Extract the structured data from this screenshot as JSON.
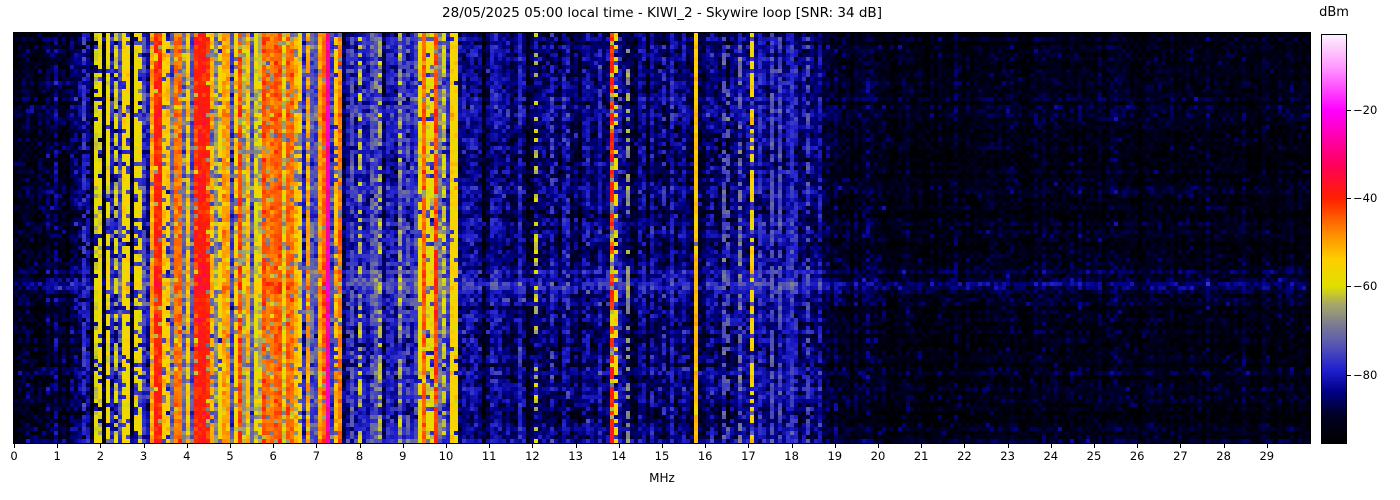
{
  "chart_data": {
    "type": "heatmap",
    "subtype": "radio-spectrogram-waterfall",
    "title": "28/05/2025 05:00 local time - KIWI_2 - Skywire loop [SNR: 34 dB]",
    "xlabel": "MHz",
    "ylabel": "",
    "colorbar_label": "dBm",
    "x_range": [
      0,
      30
    ],
    "x_ticks": [
      0,
      1,
      2,
      3,
      4,
      5,
      6,
      7,
      8,
      9,
      10,
      11,
      12,
      13,
      14,
      15,
      16,
      17,
      18,
      19,
      20,
      21,
      22,
      23,
      24,
      25,
      26,
      27,
      28,
      29
    ],
    "value_range": [
      -95.5,
      -3
    ],
    "colorbar_ticks": [
      {
        "value": -20,
        "label": "−20"
      },
      {
        "value": -40,
        "label": "−40"
      },
      {
        "value": -60,
        "label": "−60"
      },
      {
        "value": -80,
        "label": "−80"
      }
    ],
    "colormap": [
      {
        "pos": 0.0,
        "color": "#000000"
      },
      {
        "pos": 0.07,
        "color": "#000028"
      },
      {
        "pos": 0.124,
        "color": "#000085"
      },
      {
        "pos": 0.178,
        "color": "#2020d0"
      },
      {
        "pos": 0.232,
        "color": "#5050b8"
      },
      {
        "pos": 0.286,
        "color": "#7a7a96"
      },
      {
        "pos": 0.34,
        "color": "#a8a868"
      },
      {
        "pos": 0.384,
        "color": "#e0e000"
      },
      {
        "pos": 0.449,
        "color": "#ffd000"
      },
      {
        "pos": 0.514,
        "color": "#ff8c00"
      },
      {
        "pos": 0.6,
        "color": "#ff2000"
      },
      {
        "pos": 0.686,
        "color": "#ff0060"
      },
      {
        "pos": 0.816,
        "color": "#ff00ff"
      },
      {
        "pos": 0.924,
        "color": "#ff9cff"
      },
      {
        "pos": 1.0,
        "color": "#fdf0fd"
      }
    ],
    "grid": {
      "cols": 324,
      "rows": 102
    },
    "noise_floor_dbm": [
      [
        0,
        -91.5
      ],
      [
        1.5,
        -90
      ],
      [
        1.85,
        -87.5
      ],
      [
        2.05,
        -84
      ],
      [
        2.55,
        -82
      ],
      [
        2.95,
        -84
      ],
      [
        3.07,
        -87
      ],
      [
        3.2,
        -74
      ],
      [
        3.5,
        -71.5
      ],
      [
        5.0,
        -70.5
      ],
      [
        6.0,
        -70.5
      ],
      [
        7.3,
        -71
      ],
      [
        7.55,
        -74
      ],
      [
        7.75,
        -79.5
      ],
      [
        9.25,
        -78
      ],
      [
        9.45,
        -73
      ],
      [
        9.85,
        -75
      ],
      [
        10.05,
        -80
      ],
      [
        10.45,
        -84.5
      ],
      [
        11.5,
        -85
      ],
      [
        13.5,
        -85.5
      ],
      [
        15.5,
        -86
      ],
      [
        16.6,
        -85
      ],
      [
        17.2,
        -83.5
      ],
      [
        18.3,
        -83.5
      ],
      [
        18.9,
        -88
      ],
      [
        19.6,
        -91
      ],
      [
        21,
        -91.8
      ],
      [
        30,
        -92
      ]
    ],
    "column_sigma_db": [
      [
        0,
        1.5
      ],
      [
        1.8,
        2
      ],
      [
        2.1,
        3
      ],
      [
        3.2,
        5
      ],
      [
        7.5,
        5
      ],
      [
        7.8,
        4
      ],
      [
        9.3,
        4
      ],
      [
        10.4,
        2.5
      ],
      [
        13.5,
        2.5
      ],
      [
        16.5,
        3
      ],
      [
        18.5,
        2
      ],
      [
        19.5,
        1.2
      ],
      [
        30,
        1
      ]
    ],
    "cell_sigma_db": [
      [
        0,
        2.8
      ],
      [
        3.2,
        3.5
      ],
      [
        7.6,
        3.2
      ],
      [
        10.4,
        3
      ],
      [
        19.5,
        2.6
      ],
      [
        30,
        2.5
      ]
    ],
    "row_streak_sigma_db": 1.2,
    "time_bands": [
      {
        "row_frac": 0.195,
        "boost_db": 4.0,
        "width_rows": 1.0
      },
      {
        "row_frac": 0.575,
        "boost_db": 2.5,
        "width_rows": 0.9
      },
      {
        "row_frac": 0.615,
        "boost_db": 6.0,
        "width_rows": 1.1
      },
      {
        "row_frac": 0.995,
        "boost_db": 4.5,
        "width_rows": 0.8
      }
    ],
    "signals_format": [
      "freq_mhz",
      "dbm",
      "width_bins",
      "solidity"
    ],
    "signals": [
      [
        0.62,
        -86,
        1,
        0.5
      ],
      [
        1.0,
        -85,
        1,
        0.5
      ],
      [
        1.35,
        -86,
        1,
        0.5
      ],
      [
        1.62,
        -80,
        1,
        0.8
      ],
      [
        1.71,
        -81,
        1,
        0.7
      ],
      [
        1.86,
        -62,
        1,
        0.8
      ],
      [
        2.02,
        -58,
        1,
        0.85
      ],
      [
        2.21,
        -57,
        1,
        0.8
      ],
      [
        2.33,
        -60,
        1,
        0.7
      ],
      [
        2.5,
        -56,
        1,
        0.85
      ],
      [
        2.65,
        -58,
        1,
        0.8
      ],
      [
        2.8,
        -57,
        1,
        0.75
      ],
      [
        2.95,
        -59,
        1,
        0.7
      ],
      [
        3.2,
        -50,
        1,
        0.9
      ],
      [
        3.33,
        -42,
        2,
        0.9
      ],
      [
        3.48,
        -55,
        1,
        0.8
      ],
      [
        3.6,
        -52,
        1,
        0.85
      ],
      [
        3.75,
        -47,
        2,
        0.85
      ],
      [
        3.88,
        -50,
        1,
        0.8
      ],
      [
        4.05,
        -55,
        1,
        0.8
      ],
      [
        4.22,
        -41,
        2,
        0.9
      ],
      [
        4.31,
        -38,
        2,
        0.95
      ],
      [
        4.4,
        -43,
        2,
        0.85
      ],
      [
        4.55,
        -52,
        1,
        0.8
      ],
      [
        4.78,
        -56,
        1,
        0.75
      ],
      [
        4.95,
        -49,
        2,
        0.85
      ],
      [
        5.1,
        -55,
        1,
        0.8
      ],
      [
        5.25,
        -43,
        1,
        0.9
      ],
      [
        5.45,
        -52,
        1,
        0.8
      ],
      [
        5.6,
        -57,
        1,
        0.7
      ],
      [
        5.75,
        -42,
        1,
        0.9
      ],
      [
        5.95,
        -47,
        2,
        0.85
      ],
      [
        6.07,
        -44,
        2,
        0.9
      ],
      [
        6.18,
        -48,
        1,
        0.85
      ],
      [
        6.35,
        -46,
        2,
        0.85
      ],
      [
        6.5,
        -49,
        1,
        0.8
      ],
      [
        6.65,
        -55,
        1,
        0.75
      ],
      [
        6.85,
        -53,
        1,
        0.8
      ],
      [
        7.05,
        -50,
        1,
        0.85
      ],
      [
        7.2,
        -45,
        1,
        0.9
      ],
      [
        7.31,
        -27,
        1,
        1.0
      ],
      [
        7.42,
        -50,
        1,
        0.8
      ],
      [
        7.55,
        -47,
        1,
        0.85
      ],
      [
        7.85,
        -75,
        1,
        0.7
      ],
      [
        8.05,
        -64,
        1,
        0.5
      ],
      [
        8.25,
        -76,
        1,
        0.7
      ],
      [
        8.47,
        -66,
        1,
        0.5
      ],
      [
        8.75,
        -76,
        1,
        0.6
      ],
      [
        8.95,
        -65,
        1,
        0.5
      ],
      [
        9.1,
        -74,
        1,
        0.6
      ],
      [
        9.4,
        -60,
        2,
        0.8
      ],
      [
        9.5,
        -43,
        1,
        0.9
      ],
      [
        9.65,
        -58,
        2,
        0.8
      ],
      [
        9.78,
        -42,
        1,
        0.85
      ],
      [
        9.92,
        -60,
        1,
        0.7
      ],
      [
        10.12,
        -55,
        1,
        0.95
      ],
      [
        10.24,
        -56,
        1,
        0.9
      ],
      [
        10.7,
        -82,
        1,
        0.5
      ],
      [
        11.05,
        -80,
        1,
        0.5
      ],
      [
        11.4,
        -81,
        1,
        0.5
      ],
      [
        11.75,
        -79,
        1,
        0.5
      ],
      [
        12.1,
        -62,
        1,
        0.45
      ],
      [
        12.45,
        -80,
        1,
        0.5
      ],
      [
        12.8,
        -80,
        1,
        0.4
      ],
      [
        13.3,
        -80,
        1,
        0.4
      ],
      [
        13.86,
        -40,
        1,
        0.75
      ],
      [
        13.97,
        -58,
        1,
        0.5
      ],
      [
        14.2,
        -68,
        1,
        0.5
      ],
      [
        14.6,
        -80,
        1,
        0.5
      ],
      [
        15.0,
        -80,
        1,
        0.4
      ],
      [
        15.3,
        -81,
        1,
        0.5
      ],
      [
        15.76,
        -54,
        1,
        0.97
      ],
      [
        16.2,
        -80,
        1,
        0.5
      ],
      [
        16.4,
        -72,
        1,
        0.4
      ],
      [
        16.57,
        -73,
        1,
        0.4
      ],
      [
        16.85,
        -70,
        1,
        0.5
      ],
      [
        17.05,
        -57,
        1,
        0.7
      ],
      [
        17.3,
        -78,
        1,
        0.6
      ],
      [
        17.55,
        -75,
        1,
        0.7
      ],
      [
        17.72,
        -76,
        1,
        0.7
      ],
      [
        17.9,
        -79,
        1,
        0.6
      ],
      [
        18.1,
        -78,
        2,
        0.6
      ],
      [
        18.42,
        -77,
        1,
        0.6
      ],
      [
        18.65,
        -80,
        1,
        0.5
      ],
      [
        19.8,
        -87,
        1,
        0.4
      ],
      [
        21.8,
        -88,
        1,
        0.3
      ]
    ]
  }
}
